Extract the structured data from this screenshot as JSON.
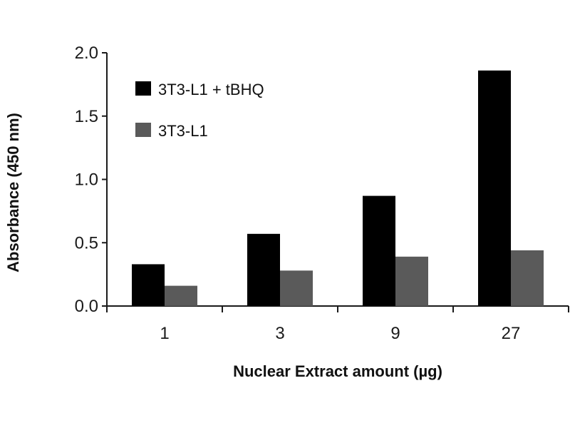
{
  "chart_data": {
    "type": "bar",
    "categories": [
      "1",
      "3",
      "9",
      "27"
    ],
    "series": [
      {
        "name": "3T3-L1 + tBHQ",
        "values": [
          0.33,
          0.57,
          0.87,
          1.86
        ],
        "color": "#000000"
      },
      {
        "name": "3T3-L1",
        "values": [
          0.16,
          0.28,
          0.39,
          0.44
        ],
        "color": "#5a5a5a"
      }
    ],
    "xlabel": "Nuclear Extract amount (µg)",
    "ylabel": "Absorbance (450 nm)",
    "ylim": [
      0,
      2.0
    ],
    "yticks": [
      "0.0",
      "0.5",
      "1.0",
      "1.5",
      "2.0"
    ],
    "grid": false,
    "legend_position": "top-left"
  }
}
